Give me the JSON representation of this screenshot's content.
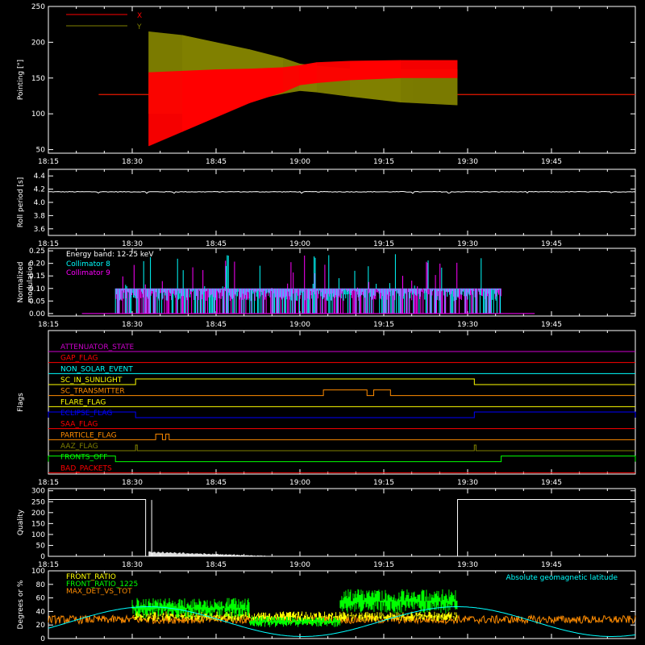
{
  "time_ticks": [
    "18:15",
    "18:30",
    "18:45",
    "19:00",
    "19:15",
    "19:30",
    "19:45"
  ],
  "colors": {
    "axes": "#ffffff",
    "x": "#ff0000",
    "y": "#808000",
    "roll": "#ffffff",
    "c8": "#00ffff",
    "c9": "#ff00ff",
    "quality": "#ffffff",
    "front_ratio": "#ffff00",
    "front_ratio_1225": "#00ff00",
    "max_det": "#ff8c00",
    "geolat": "#00ffff"
  },
  "chart_data": [
    {
      "type": "area",
      "ylabel": "Pointing [\"]",
      "ylim": [
        45,
        250
      ],
      "yticks": [
        50,
        100,
        150,
        200,
        250
      ],
      "series": [
        {
          "name": "X",
          "color": "#ff0000",
          "key": "x",
          "envelope": [
            [
              18.4,
              127,
              127
            ],
            [
              18.55,
              127,
              127
            ],
            [
              18.55,
              55,
              158
            ],
            [
              18.65,
              75,
              160
            ],
            [
              18.75,
              95,
              162
            ],
            [
              18.85,
              115,
              163
            ],
            [
              18.95,
              130,
              165
            ],
            [
              19.0,
              140,
              168
            ],
            [
              19.05,
              143,
              172
            ],
            [
              19.15,
              147,
              174
            ],
            [
              19.3,
              150,
              175
            ],
            [
              19.47,
              150,
              175
            ],
            [
              19.47,
              127,
              127
            ],
            [
              20.0,
              127,
              127
            ]
          ]
        },
        {
          "name": "Y",
          "color": "#808000",
          "key": "y",
          "envelope": [
            [
              18.4,
              127,
              127
            ],
            [
              18.55,
              127,
              127
            ],
            [
              18.55,
              100,
              215
            ],
            [
              18.65,
              100,
              210
            ],
            [
              18.75,
              108,
              200
            ],
            [
              18.85,
              118,
              190
            ],
            [
              18.95,
              128,
              178
            ],
            [
              19.0,
              132,
              170
            ],
            [
              19.05,
              130,
              167
            ],
            [
              19.15,
              124,
              163
            ],
            [
              19.3,
              116,
              162
            ],
            [
              19.47,
              112,
              162
            ],
            [
              19.47,
              127,
              127
            ],
            [
              20.0,
              127,
              127
            ]
          ]
        }
      ]
    },
    {
      "type": "line",
      "ylabel": "Roll period [s]",
      "ylim": [
        3.5,
        4.5
      ],
      "yticks": [
        3.6,
        3.8,
        4.0,
        4.2,
        4.4
      ],
      "series": [
        {
          "values_const": 4.16
        }
      ]
    },
    {
      "type": "line",
      "ylabel": "Normalized modulation",
      "ylim": [
        -0.01,
        0.26
      ],
      "yticks": [
        0.0,
        0.05,
        0.1,
        0.15,
        0.2,
        0.25
      ],
      "annotation": "Energy band: 12-25 keV",
      "series": [
        {
          "name": "Collimator 8",
          "color": "#00ffff"
        },
        {
          "name": "Collimator 9",
          "color": "#ff00ff"
        }
      ],
      "x_range": [
        18.45,
        19.6
      ]
    },
    {
      "type": "line",
      "ylabel": "Flags",
      "flags": [
        {
          "name": "ATTENUATOR_STATE",
          "color": "#cc00cc",
          "on": []
        },
        {
          "name": "GAP_FLAG",
          "color": "#ff0000",
          "on": []
        },
        {
          "name": "NON_SOLAR_EVENT",
          "color": "#00ffff",
          "on": []
        },
        {
          "name": "SC_IN_SUNLIGHT",
          "color": "#ffff00",
          "on": [
            [
              18.51,
              19.52
            ]
          ]
        },
        {
          "name": "SC_TRANSMITTER",
          "color": "#ff8c00",
          "on": [
            [
              19.07,
              19.2
            ],
            [
              19.22,
              19.27
            ]
          ]
        },
        {
          "name": "FLARE_FLAG",
          "color": "#ffff00",
          "on": []
        },
        {
          "name": "ECLIPSE_FLAG",
          "color": "#0000ff",
          "on": [
            [
              18.25,
              18.51
            ],
            [
              19.52,
              20.0
            ]
          ]
        },
        {
          "name": "SAA_FLAG",
          "color": "#ff0000",
          "on": []
        },
        {
          "name": "PARTICLE_FLAG",
          "color": "#ff8c00",
          "on": [
            [
              18.57,
              18.59
            ],
            [
              18.6,
              18.61
            ]
          ]
        },
        {
          "name": "AAZ_FLAG",
          "color": "#808000",
          "on": [
            [
              18.51,
              18.515
            ],
            [
              19.52,
              19.525
            ]
          ]
        },
        {
          "name": "FRONTS_OFF",
          "color": "#00ff00",
          "on": [
            [
              18.25,
              18.45
            ],
            [
              19.6,
              20.0
            ]
          ]
        },
        {
          "name": "BAD_PACKETS",
          "color": "#ff0000",
          "on": []
        }
      ]
    },
    {
      "type": "line",
      "ylabel": "Quality",
      "ylim": [
        0,
        310
      ],
      "yticks": [
        0,
        50,
        100,
        150,
        200,
        250,
        300
      ],
      "series": [
        {
          "high": 260,
          "high_ranges": [
            [
              18.25,
              18.54
            ],
            [
              19.47,
              20.0
            ]
          ]
        }
      ]
    },
    {
      "type": "line",
      "ylabel": "Degrees or %",
      "ylim": [
        0,
        100
      ],
      "yticks": [
        0,
        20,
        40,
        60,
        80,
        100
      ],
      "series": [
        {
          "name": "FRONT_RATIO",
          "color": "#ffff00"
        },
        {
          "name": "FRONT_RATIO_1225",
          "color": "#00ff00"
        },
        {
          "name": "MAX_DET_VS_TOT",
          "color": "#ff8c00"
        },
        {
          "name": "Absolute geomagnetic latitude",
          "color": "#00ffff"
        }
      ]
    }
  ]
}
